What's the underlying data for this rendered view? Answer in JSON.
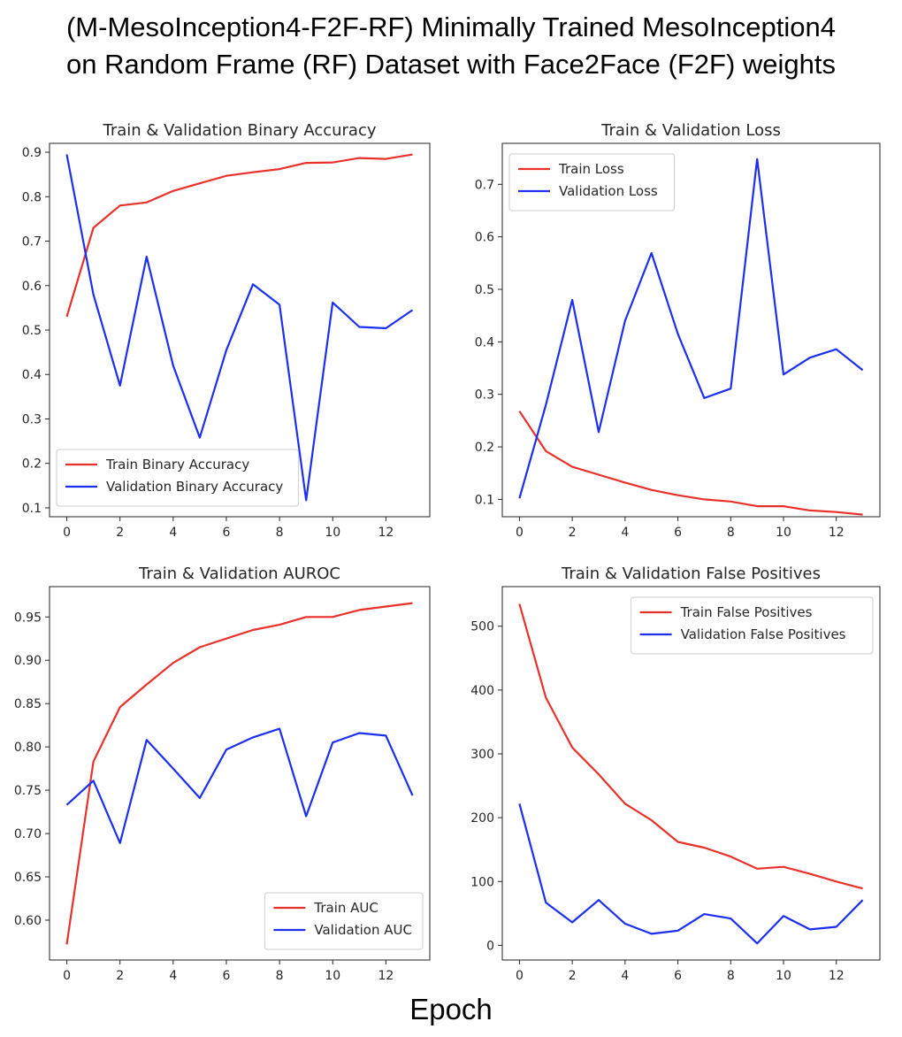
{
  "figure": {
    "title_line1": "(M-MesoInception4-F2F-RF) Minimally Trained MesoInception4",
    "title_line2": "on Random Frame (RF) Dataset with Face2Face (F2F) weights",
    "xlabel": "Epoch"
  },
  "colors": {
    "train": "#e8312a",
    "validation": "#1a2fef"
  },
  "chart_data": [
    {
      "type": "line",
      "title": "Train & Validation Binary Accuracy",
      "x": [
        0,
        1,
        2,
        3,
        4,
        5,
        6,
        7,
        8,
        9,
        10,
        11,
        12,
        13
      ],
      "xlim": [
        -0.65,
        13.65
      ],
      "ylim": [
        0.08,
        0.92
      ],
      "xticks": [
        0,
        2,
        4,
        6,
        8,
        10,
        12
      ],
      "yticks": [
        0.1,
        0.2,
        0.3,
        0.4,
        0.5,
        0.6,
        0.7,
        0.8,
        0.9
      ],
      "ytick_labels": [
        "0.1",
        "0.2",
        "0.3",
        "0.4",
        "0.5",
        "0.6",
        "0.7",
        "0.8",
        "0.9"
      ],
      "legend": "lower-left",
      "series": [
        {
          "name": "Train Binary Accuracy",
          "color": "#e8312a",
          "values": [
            0.53,
            0.73,
            0.78,
            0.787,
            0.813,
            0.83,
            0.847,
            0.855,
            0.862,
            0.876,
            0.877,
            0.887,
            0.885,
            0.895
          ]
        },
        {
          "name": "Validation Binary Accuracy",
          "color": "#1a2fef",
          "values": [
            0.895,
            0.58,
            0.375,
            0.665,
            0.42,
            0.258,
            0.455,
            0.603,
            0.557,
            0.117,
            0.562,
            0.507,
            0.504,
            0.545
          ]
        }
      ]
    },
    {
      "type": "line",
      "title": "Train & Validation Loss",
      "x": [
        0,
        1,
        2,
        3,
        4,
        5,
        6,
        7,
        8,
        9,
        10,
        11,
        12,
        13
      ],
      "xlim": [
        -0.65,
        13.65
      ],
      "ylim": [
        0.067,
        0.778
      ],
      "xticks": [
        0,
        2,
        4,
        6,
        8,
        10,
        12
      ],
      "yticks": [
        0.1,
        0.2,
        0.3,
        0.4,
        0.5,
        0.6,
        0.7
      ],
      "ytick_labels": [
        "0.1",
        "0.2",
        "0.3",
        "0.4",
        "0.5",
        "0.6",
        "0.7"
      ],
      "legend": "upper-left",
      "series": [
        {
          "name": "Train Loss",
          "color": "#e8312a",
          "values": [
            0.268,
            0.192,
            0.162,
            0.147,
            0.132,
            0.118,
            0.108,
            0.1,
            0.096,
            0.087,
            0.087,
            0.079,
            0.076,
            0.071
          ]
        },
        {
          "name": "Validation Loss",
          "color": "#1a2fef",
          "values": [
            0.102,
            0.28,
            0.48,
            0.228,
            0.44,
            0.569,
            0.415,
            0.293,
            0.311,
            0.748,
            0.338,
            0.37,
            0.386,
            0.346
          ]
        }
      ]
    },
    {
      "type": "line",
      "title": "Train & Validation AUROC",
      "x": [
        0,
        1,
        2,
        3,
        4,
        5,
        6,
        7,
        8,
        9,
        10,
        11,
        12,
        13
      ],
      "xlim": [
        -0.65,
        13.65
      ],
      "ylim": [
        0.554,
        0.985
      ],
      "xticks": [
        0,
        2,
        4,
        6,
        8,
        10,
        12
      ],
      "yticks": [
        0.6,
        0.65,
        0.7,
        0.75,
        0.8,
        0.85,
        0.9,
        0.95
      ],
      "ytick_labels": [
        "0.60",
        "0.65",
        "0.70",
        "0.75",
        "0.80",
        "0.85",
        "0.90",
        "0.95"
      ],
      "legend": "lower-right",
      "series": [
        {
          "name": "Train AUC",
          "color": "#e8312a",
          "values": [
            0.572,
            0.783,
            0.846,
            0.872,
            0.897,
            0.915,
            0.925,
            0.935,
            0.941,
            0.95,
            0.95,
            0.958,
            0.962,
            0.966
          ]
        },
        {
          "name": "Validation AUC",
          "color": "#1a2fef",
          "values": [
            0.733,
            0.761,
            0.689,
            0.808,
            0.775,
            0.741,
            0.797,
            0.811,
            0.821,
            0.72,
            0.805,
            0.816,
            0.813,
            0.744
          ]
        }
      ]
    },
    {
      "type": "line",
      "title": "Train & Validation False Positives",
      "x": [
        0,
        1,
        2,
        3,
        4,
        5,
        6,
        7,
        8,
        9,
        10,
        11,
        12,
        13
      ],
      "xlim": [
        -0.65,
        13.65
      ],
      "ylim": [
        -23,
        562
      ],
      "xticks": [
        0,
        2,
        4,
        6,
        8,
        10,
        12
      ],
      "yticks": [
        0,
        100,
        200,
        300,
        400,
        500
      ],
      "ytick_labels": [
        "0",
        "100",
        "200",
        "300",
        "400",
        "500"
      ],
      "legend": "upper-right",
      "series": [
        {
          "name": "Train False Positives",
          "color": "#e8312a",
          "values": [
            535,
            388,
            310,
            268,
            222,
            196,
            162,
            153,
            139,
            120,
            123,
            112,
            100,
            89
          ]
        },
        {
          "name": "Validation False Positives",
          "color": "#1a2fef",
          "values": [
            222,
            67,
            36,
            71,
            34,
            18,
            23,
            49,
            42,
            3,
            46,
            25,
            29,
            71
          ]
        }
      ]
    }
  ]
}
